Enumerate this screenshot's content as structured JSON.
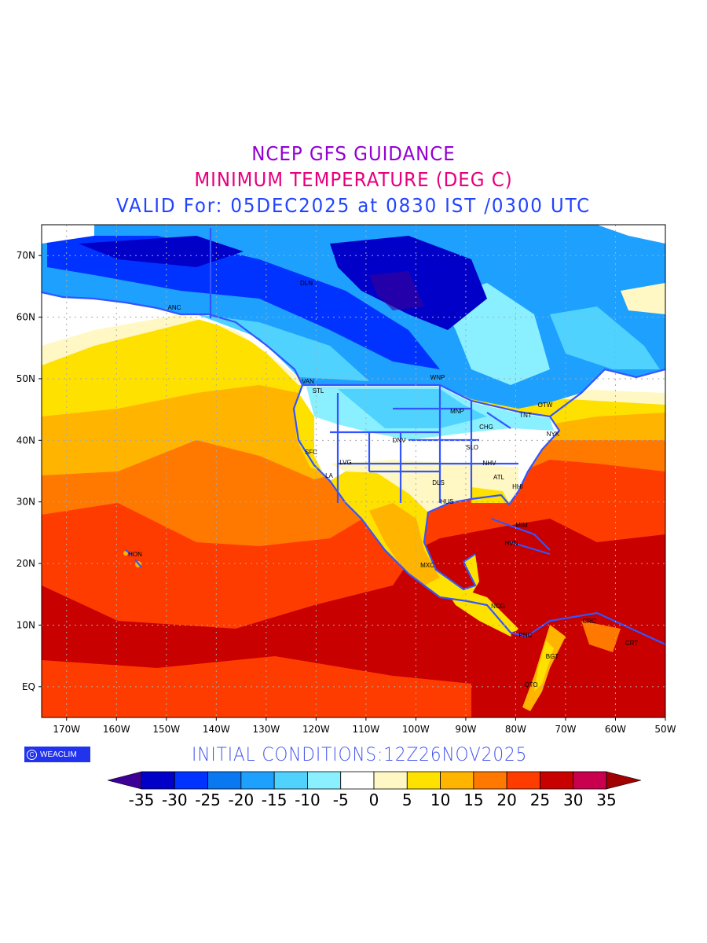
{
  "title": {
    "line1": "NCEP GFS GUIDANCE",
    "line2": "MINIMUM TEMPERATURE (DEG C)",
    "line3": "VALID For: 05DEC2025 at 0830 IST /0300 UTC"
  },
  "initial_conditions": "INITIAL  CONDITIONS:12Z26NOV2025",
  "logo": {
    "symbol": "C",
    "text": "WEACLIM"
  },
  "axes": {
    "lon_labels": [
      "170W",
      "160W",
      "150W",
      "140W",
      "130W",
      "120W",
      "110W",
      "100W",
      "90W",
      "80W",
      "70W",
      "60W",
      "50W"
    ],
    "lat_labels": [
      "70N",
      "60N",
      "50N",
      "40N",
      "30N",
      "20N",
      "10N",
      "EQ"
    ]
  },
  "colorbar": {
    "levels": [
      "-35",
      "-30",
      "-25",
      "-20",
      "-15",
      "-10",
      "-5",
      "0",
      "5",
      "10",
      "15",
      "20",
      "25",
      "30",
      "35"
    ],
    "colors": [
      "#0000c8",
      "#0033ff",
      "#0a78f0",
      "#1ea0ff",
      "#50d2ff",
      "#8af0ff",
      "#ffffff",
      "#fff8c4",
      "#ffe100",
      "#ffb400",
      "#ff7800",
      "#ff3c00",
      "#c80000",
      "#c8004e"
    ],
    "under_color": "#3c0096",
    "over_color": "#a00000"
  },
  "cities": [
    "DLN",
    "ANC",
    "VAN",
    "STL",
    "WNP",
    "MNP",
    "OTW",
    "TNT",
    "CHG",
    "NYK",
    "DNV",
    "SLO",
    "SFC",
    "LVG",
    "NHV",
    "LA",
    "ATL",
    "DLS",
    "HHI",
    "HUS",
    "MIM",
    "HVN",
    "HON",
    "MXC",
    "NCG",
    "CRC",
    "PNC",
    "CRT",
    "BGT",
    "QTO"
  ]
}
